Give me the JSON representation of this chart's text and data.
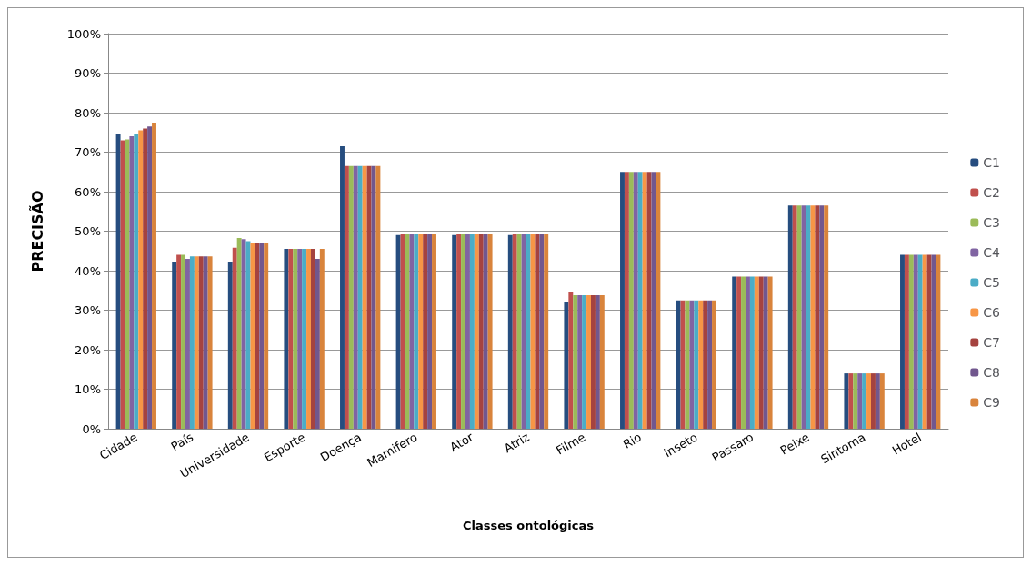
{
  "chart_data": {
    "type": "bar",
    "xlabel": "Classes ontológicas",
    "ylabel": "PRECISÃO",
    "categories": [
      "Cidade",
      "País",
      "Universidade",
      "Esporte",
      "Doença",
      "Mamifero",
      "Ator",
      "Atriz",
      "Filme",
      "Rio",
      "inseto",
      "Passaro",
      "Peixe",
      "Sintoma",
      "Hotel"
    ],
    "series": [
      {
        "name": "C1",
        "color": "#264d7f",
        "values": [
          74.5,
          42.3,
          42.3,
          45.5,
          71.5,
          49,
          49,
          49,
          32,
          65,
          32.5,
          38.5,
          56.5,
          14,
          44
        ]
      },
      {
        "name": "C2",
        "color": "#c0504d",
        "values": [
          73,
          44,
          45.8,
          45.5,
          66.5,
          49.2,
          49.2,
          49.2,
          34.5,
          65,
          32.5,
          38.5,
          56.5,
          14,
          44
        ]
      },
      {
        "name": "C3",
        "color": "#9bbb59",
        "values": [
          73.2,
          44,
          48.3,
          45.5,
          66.5,
          49.2,
          49.2,
          49.2,
          33.8,
          65,
          32.5,
          38.5,
          56.5,
          14,
          44
        ]
      },
      {
        "name": "C4",
        "color": "#8064a2",
        "values": [
          74,
          43,
          48,
          45.5,
          66.5,
          49.2,
          49.2,
          49.2,
          33.8,
          65,
          32.5,
          38.5,
          56.5,
          14,
          44
        ]
      },
      {
        "name": "C5",
        "color": "#4bacc6",
        "values": [
          74.5,
          43.6,
          47.5,
          45.5,
          66.5,
          49.2,
          49.2,
          49.2,
          33.8,
          65,
          32.5,
          38.5,
          56.5,
          14,
          44
        ]
      },
      {
        "name": "C6",
        "color": "#f79646",
        "values": [
          75.5,
          43.6,
          47,
          45.5,
          66.5,
          49.2,
          49.2,
          49.2,
          33.8,
          65,
          32.5,
          38.5,
          56.5,
          14,
          44
        ]
      },
      {
        "name": "C7",
        "color": "#a5433f",
        "values": [
          76,
          43.6,
          47,
          45.5,
          66.5,
          49.2,
          49.2,
          49.2,
          33.8,
          65,
          32.5,
          38.5,
          56.5,
          14,
          44
        ]
      },
      {
        "name": "C8",
        "color": "#71578e",
        "values": [
          76.5,
          43.6,
          47,
          43,
          66.5,
          49.2,
          49.2,
          49.2,
          33.8,
          65,
          32.5,
          38.5,
          56.5,
          14,
          44
        ]
      },
      {
        "name": "C9",
        "color": "#d9843c",
        "values": [
          77.5,
          43.6,
          47,
          45.5,
          66.5,
          49.2,
          49.2,
          49.2,
          33.8,
          65,
          32.5,
          38.5,
          56.5,
          14,
          44
        ]
      }
    ],
    "ylim": [
      0,
      100
    ],
    "yticks": [
      {
        "value": 0,
        "label": "0%"
      },
      {
        "value": 10,
        "label": "10%"
      },
      {
        "value": 20,
        "label": "20%"
      },
      {
        "value": 30,
        "label": "30%"
      },
      {
        "value": 40,
        "label": "40%"
      },
      {
        "value": 50,
        "label": "50%"
      },
      {
        "value": 60,
        "label": "60%"
      },
      {
        "value": 70,
        "label": "70%"
      },
      {
        "value": 80,
        "label": "80%"
      },
      {
        "value": 90,
        "label": "90%"
      },
      {
        "value": 100,
        "label": "100%"
      }
    ],
    "grid": "y",
    "legend": "right"
  }
}
